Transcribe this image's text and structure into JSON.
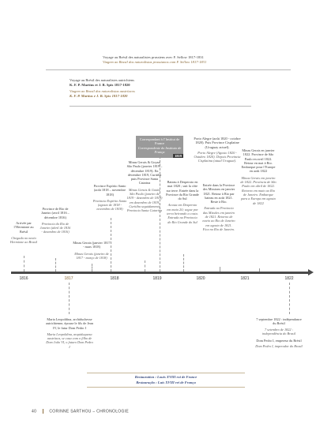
{
  "header": {
    "line1_fr": "Voyage au Brésil des naturalistes prussiens avec F. Sellow 1817-1831",
    "line1_pt": "Viagem ao Brasil dos naturalistas prussianos com F. Sellow 1817-1831",
    "line2_title_fr": "Voyage au Brésil des naturalistes autrichiens",
    "line2_names_fr": "K. F. P. Martius et J. B. Spix 1817-1820",
    "line2_title_pt": "Viagem ao Brasil dos naturalistas austríacos",
    "line2_names_pt": "K. F. P. Martius e J. B. Spix 1817-1820"
  },
  "columns": [
    {
      "fr": "Arrivée par l’Hermione au Brésil",
      "pt": "Chegada no navio Hermione ao Brasil"
    },
    {
      "fr": "Province de Rio de Janeiro (avril 1816 – décembre 1816)",
      "pt": "Provincia do Rio de Janeiro (abril de 1816 - dezembro de 1816)"
    },
    {
      "fr": "Minas Gerais (janvier 1817 - mars 1818)",
      "pt": "Minas Gerais (janeiro de 1817 - março de 1818)"
    },
    {
      "fr": "Province Espírito Santo (août 1818 – novembre 1818)",
      "pt": "Provincia Espírito Santo (agosto de 1818 - novembro de 1818)"
    },
    {
      "fr": "Minas Gerais & Goyaz, São Paulo (janvier 1819 – décembre 1819). En décembre 1819, Curitiba puis Province Santa Catarina",
      "pt": "Minas Gerais & Goiás, São Paulo (janeiro de 1819 - dezembro de 1819) em dezembro de 1819, Curitiba seguidamente Provincia Santa Catarina"
    },
    {
      "fr": "Bateau à Desperoto en mai 1820 ; suit la côte sur terre. Entrée dans la Province du Rio Grande do Sul",
      "pt": "Acosta em Desperoto em maio 20; segue por terra beirando a costa. Entrada na Provincia do Rio Grande do Sul"
    },
    {
      "fr": "Entrée dans la Province des Missions en janvier 1821. Retour à Rio par bateau en août 1821. Reste à Rio.",
      "pt": "Entrada na Provincia das Missões em janeiro de 1821. Retorno de navio ao Rio de Janeiro em agosto de 1821. Fica no Rio de Janeiro."
    },
    {
      "fr": "Minas Gerais en janvier 1822. Province de São Paulo en avril 1822. Retour en mai à Rio. Embarque pour l’Europe en août 1822",
      "pt": "Minas Gerais em janeiro de 1822. Provincia de São Paulo em abril de 1822. Retorno em maio ao Rio de Janeiro. Embarque para a Europa em agosto de 1822"
    }
  ],
  "correspondant": {
    "fr": "Correspondant à l’Institut de France",
    "pt": "Correspondente do Instituto de França",
    "year": "1819"
  },
  "porto_alegre": {
    "fr": "Porto Alegre (août 1820 - octobre 1820). Puis Province Cisplatine (Uruguay actuel).",
    "pt": "Porto Alegre (Agosto 1820 - Outubro 1820). Depois Provincia Cisplatina (atual Uruguai)."
  },
  "years": [
    "1816",
    "1817",
    "1818",
    "1819",
    "1820",
    "1821",
    "1822"
  ],
  "below": {
    "left_fr": "Maria Leopoldina, archiduchesse autrichienne, épouse le fils de Jean IV, le futur Dom Pedro I",
    "left_pt": "Maria Leopoldina, arquiduquesa austríaca, se casa com o filho de Dom João VI, o futuro Dom Pedro I",
    "right1_fr": "7 septembre 1822 : indépendance du Brésil",
    "right1_pt": "7 setembro de 1822 : independência do Brasil",
    "right2_fr": "Dom Pedro I, empereur du Brésil",
    "right2_pt": "Dom Pedro I, imperador do Brasil"
  },
  "restoration": {
    "fr": "Restauration : Louis XVIII roi de France",
    "pt": "Restauração : Luís XVIII rei de França"
  },
  "footer": {
    "page": "40",
    "author": "CORINNE SARTHOU",
    "title": "CHRONOLOGIE"
  },
  "colors": {
    "accent": "#8a6a3a",
    "grey_box": "#9a9a9a",
    "timeline": "#4a4a4a"
  }
}
